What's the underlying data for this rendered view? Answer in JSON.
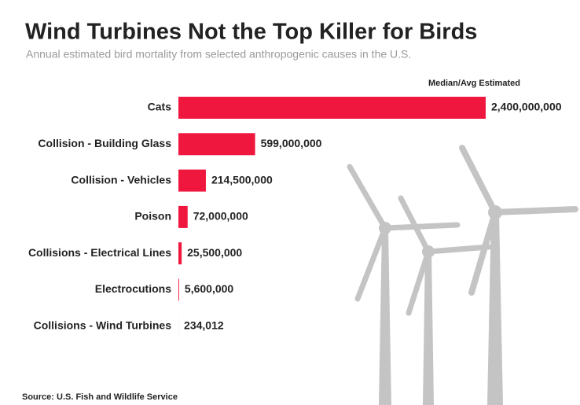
{
  "chart_data": {
    "type": "bar",
    "orientation": "horizontal",
    "title": "Wind Turbines Not the Top Killer for Birds",
    "subtitle": "Annual estimated bird mortality from selected anthropogenic causes in the U.S.",
    "value_header": "Median/Avg Estimated",
    "source": "Source:  U.S. Fish and Wildlife Service",
    "categories": [
      "Cats",
      "Collision - Building Glass",
      "Collision - Vehicles",
      "Poison",
      "Collisions - Electrical Lines",
      "Electrocutions",
      "Collisions - Wind Turbines"
    ],
    "values": [
      2400000000,
      599000000,
      214500000,
      72000000,
      25500000,
      5600000,
      234012
    ],
    "value_labels": [
      "2,400,000,000",
      "599,000,000",
      "214,500,000",
      "72,000,000",
      "25,500,000",
      "5,600,000",
      "234,012"
    ],
    "color": "#f0173f"
  }
}
